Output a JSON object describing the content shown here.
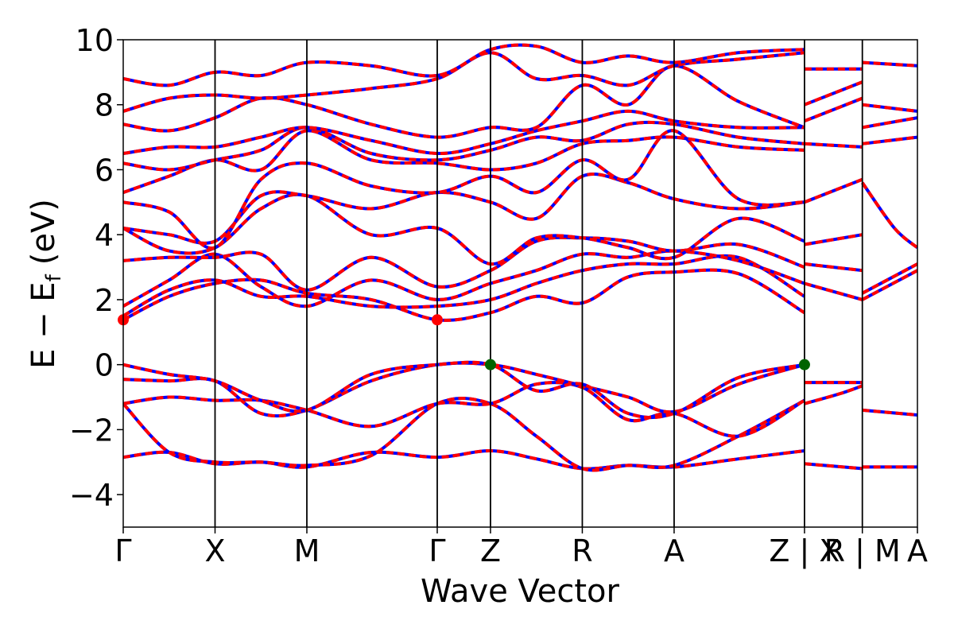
{
  "chart_data": {
    "type": "line",
    "xlabel": "Wave Vector",
    "ylabel": "E − E",
    "ylabel_subscript": "f",
    "ylabel_unit": "(eV)",
    "ylim": [
      -5,
      10
    ],
    "yticks": [
      -4,
      -2,
      0,
      2,
      4,
      6,
      8,
      10
    ],
    "xlim": [
      0,
      8.65
    ],
    "kpoints": [
      {
        "label": "Γ",
        "x": 0.0
      },
      {
        "label": "X",
        "x": 1.0
      },
      {
        "label": "M",
        "x": 2.0
      },
      {
        "label": "Γ",
        "x": 3.42
      },
      {
        "label": "Z",
        "x": 4.0
      },
      {
        "label": "R",
        "x": 5.0
      },
      {
        "label": "A",
        "x": 6.0
      },
      {
        "label": "Z | X",
        "x": 7.42
      },
      {
        "label": "R | M",
        "x": 8.05
      },
      {
        "label": "A",
        "x": 8.65
      }
    ],
    "style": {
      "line_color_primary": "#0000ff",
      "line_color_overlay": "#ff0000",
      "cbm_marker_color": "#ff0000",
      "vbm_marker_color": "#006400",
      "grid": false
    },
    "markers": [
      {
        "type": "CBM",
        "x": 0.0,
        "y": 1.38
      },
      {
        "type": "CBM",
        "x": 3.42,
        "y": 1.38
      },
      {
        "type": "VBM",
        "x": 4.0,
        "y": 0.0
      },
      {
        "type": "VBM",
        "x": 7.42,
        "y": 0.0
      }
    ],
    "segments": [
      {
        "x_range": [
          0.0,
          7.42
        ],
        "bands": [
          {
            "x": [
              0,
              0.5,
              1,
              1.5,
              2,
              2.7,
              3.42,
              4,
              4.5,
              5,
              5.5,
              6,
              6.7,
              7.42
            ],
            "y": [
              -2.85,
              -2.7,
              -3.05,
              -3.0,
              -3.15,
              -2.7,
              -2.85,
              -2.65,
              -2.9,
              -3.2,
              -3.1,
              -3.15,
              -2.9,
              -2.65
            ]
          },
          {
            "x": [
              0,
              0.5,
              1,
              1.5,
              2,
              2.7,
              3.42,
              4,
              4.5,
              5,
              5.5,
              6,
              6.7,
              7.42
            ],
            "y": [
              -1.2,
              -2.7,
              -3.0,
              -3.0,
              -3.1,
              -2.8,
              -1.2,
              -1.2,
              -2.2,
              -3.2,
              -3.1,
              -3.1,
              -2.2,
              -1.1
            ]
          },
          {
            "x": [
              0,
              0.5,
              1,
              1.5,
              2,
              2.7,
              3.42,
              4,
              4.5,
              5,
              5.5,
              6,
              6.7,
              7.42
            ],
            "y": [
              -1.2,
              -1.0,
              -1.1,
              -1.1,
              -1.4,
              -1.9,
              -1.2,
              -1.2,
              -0.6,
              -0.7,
              -1.7,
              -1.5,
              -2.2,
              -1.1
            ]
          },
          {
            "x": [
              0,
              0.5,
              1,
              1.5,
              2,
              2.7,
              3.42,
              4,
              4.5,
              5,
              5.5,
              6,
              6.7,
              7.42
            ],
            "y": [
              -0.45,
              -0.5,
              -0.5,
              -1.5,
              -1.4,
              -0.5,
              0.0,
              0.0,
              -0.3,
              -0.65,
              -1.0,
              -1.45,
              -0.6,
              0.0
            ]
          },
          {
            "x": [
              0,
              0.5,
              1,
              1.5,
              2,
              2.7,
              3.42,
              4,
              4.5,
              5,
              5.5,
              6,
              6.7,
              7.42
            ],
            "y": [
              0.0,
              -0.3,
              -0.5,
              -1.1,
              -1.4,
              -0.3,
              0.0,
              0.0,
              -0.8,
              -0.6,
              -1.5,
              -1.5,
              -0.4,
              0.0
            ]
          },
          {
            "x": [
              0,
              0.5,
              1,
              1.5,
              2,
              2.7,
              3.42,
              4,
              4.5,
              5,
              5.5,
              6,
              6.7,
              7.42
            ],
            "y": [
              1.38,
              2.1,
              2.5,
              2.6,
              2.2,
              2.0,
              1.38,
              1.6,
              2.1,
              1.9,
              2.7,
              2.85,
              2.8,
              1.6
            ]
          },
          {
            "x": [
              0,
              0.5,
              1,
              1.5,
              2,
              2.7,
              3.42,
              4,
              4.5,
              5,
              5.5,
              6,
              6.7,
              7.42
            ],
            "y": [
              1.5,
              2.3,
              2.6,
              2.1,
              2.1,
              1.8,
              1.8,
              2.0,
              2.5,
              2.9,
              3.1,
              3.1,
              3.3,
              2.1
            ]
          },
          {
            "x": [
              0,
              0.5,
              1,
              1.5,
              2,
              2.7,
              3.42,
              4,
              4.5,
              5,
              5.5,
              6,
              6.7,
              7.42
            ],
            "y": [
              1.8,
              2.6,
              3.4,
              2.4,
              1.8,
              2.6,
              2.0,
              2.5,
              2.9,
              3.4,
              3.3,
              3.5,
              3.2,
              2.5
            ]
          },
          {
            "x": [
              0,
              0.5,
              1,
              1.5,
              2,
              2.7,
              3.42,
              4,
              4.5,
              5,
              5.5,
              6,
              6.7,
              7.42
            ],
            "y": [
              3.2,
              3.3,
              3.3,
              3.4,
              2.3,
              3.3,
              2.4,
              2.9,
              3.8,
              3.9,
              3.8,
              3.5,
              3.7,
              3.0
            ]
          },
          {
            "x": [
              0,
              0.5,
              1,
              1.5,
              2,
              2.7,
              3.42,
              4,
              4.5,
              5,
              5.5,
              6,
              6.7,
              7.42
            ],
            "y": [
              4.2,
              3.5,
              3.6,
              4.8,
              5.2,
              4.0,
              4.2,
              3.1,
              3.9,
              3.9,
              3.6,
              3.3,
              4.5,
              3.8
            ]
          },
          {
            "x": [
              0,
              0.5,
              1,
              1.5,
              2,
              2.7,
              3.42,
              4,
              4.5,
              5,
              5.5,
              6,
              6.7,
              7.42
            ],
            "y": [
              4.2,
              4.0,
              3.8,
              5.2,
              5.2,
              4.8,
              5.3,
              5.0,
              4.5,
              5.8,
              5.6,
              5.1,
              4.8,
              5.0
            ]
          },
          {
            "x": [
              0,
              0.5,
              1,
              1.5,
              2,
              2.7,
              3.42,
              4,
              4.5,
              5,
              5.5,
              6,
              6.7,
              7.42
            ],
            "y": [
              5.0,
              4.7,
              3.6,
              5.7,
              6.2,
              5.5,
              5.3,
              5.8,
              5.3,
              6.3,
              5.7,
              7.2,
              5.1,
              5.0
            ]
          },
          {
            "x": [
              0,
              0.5,
              1,
              1.5,
              2,
              2.7,
              3.42,
              4,
              4.5,
              5,
              5.5,
              6,
              6.7,
              7.42
            ],
            "y": [
              5.3,
              5.8,
              6.3,
              6.0,
              7.2,
              6.3,
              6.2,
              6.0,
              6.2,
              6.8,
              6.9,
              7.0,
              6.7,
              6.6
            ]
          },
          {
            "x": [
              0,
              0.5,
              1,
              1.5,
              2,
              2.7,
              3.42,
              4,
              4.5,
              5,
              5.5,
              6,
              6.7,
              7.42
            ],
            "y": [
              6.2,
              6.0,
              6.3,
              6.6,
              7.3,
              6.5,
              6.3,
              6.6,
              7.0,
              6.9,
              7.4,
              7.4,
              7.0,
              6.8
            ]
          },
          {
            "x": [
              0,
              0.5,
              1,
              1.5,
              2,
              2.7,
              3.42,
              4,
              4.5,
              5,
              5.5,
              6,
              6.7,
              7.42
            ],
            "y": [
              6.5,
              6.7,
              6.7,
              7.0,
              7.3,
              6.9,
              6.5,
              6.8,
              7.2,
              7.5,
              7.8,
              7.5,
              7.3,
              7.3
            ]
          },
          {
            "x": [
              0,
              0.5,
              1,
              1.5,
              2,
              2.7,
              3.42,
              4,
              4.5,
              5,
              5.5,
              6,
              6.7,
              7.42
            ],
            "y": [
              7.4,
              7.2,
              7.6,
              8.2,
              8.0,
              7.4,
              7.0,
              7.3,
              7.3,
              8.6,
              8.0,
              9.2,
              8.1,
              7.3
            ]
          },
          {
            "x": [
              0,
              0.5,
              1,
              1.5,
              2,
              2.7,
              3.42,
              4,
              4.5,
              5,
              5.5,
              6,
              6.7,
              7.42
            ],
            "y": [
              7.8,
              8.2,
              8.3,
              8.2,
              8.3,
              8.5,
              8.8,
              9.6,
              8.8,
              8.9,
              8.6,
              9.2,
              9.4,
              9.6
            ]
          },
          {
            "x": [
              0,
              0.5,
              1,
              1.5,
              2,
              2.7,
              3.42,
              4,
              4.5,
              5,
              5.5,
              6,
              6.7,
              7.42
            ],
            "y": [
              8.8,
              8.6,
              9.0,
              8.9,
              9.3,
              9.2,
              8.9,
              9.7,
              9.8,
              9.3,
              9.5,
              9.3,
              9.6,
              9.7
            ]
          }
        ]
      },
      {
        "x_range": [
          7.42,
          8.05
        ],
        "bands": [
          {
            "x": [
              7.42,
              8.05
            ],
            "y": [
              -3.05,
              -3.2
            ]
          },
          {
            "x": [
              7.42,
              8.05
            ],
            "y": [
              -0.55,
              -0.55
            ]
          },
          {
            "x": [
              7.42,
              7.8,
              8.05
            ],
            "y": [
              -1.2,
              -0.9,
              -0.65
            ]
          },
          {
            "x": [
              7.42,
              8.05
            ],
            "y": [
              2.5,
              2.0
            ]
          },
          {
            "x": [
              7.42,
              8.05
            ],
            "y": [
              3.7,
              4.0
            ]
          },
          {
            "x": [
              7.42,
              8.05
            ],
            "y": [
              3.1,
              2.9
            ]
          },
          {
            "x": [
              7.42,
              8.05
            ],
            "y": [
              5.0,
              5.7
            ]
          },
          {
            "x": [
              7.42,
              8.05
            ],
            "y": [
              6.8,
              6.7
            ]
          },
          {
            "x": [
              7.42,
              8.05
            ],
            "y": [
              7.5,
              8.2
            ]
          },
          {
            "x": [
              7.42,
              8.05
            ],
            "y": [
              8.0,
              8.7
            ]
          },
          {
            "x": [
              7.42,
              8.05
            ],
            "y": [
              9.1,
              9.1
            ]
          }
        ]
      },
      {
        "x_range": [
          8.05,
          8.65
        ],
        "bands": [
          {
            "x": [
              8.05,
              8.65
            ],
            "y": [
              -3.15,
              -3.15
            ]
          },
          {
            "x": [
              8.05,
              8.65
            ],
            "y": [
              -1.4,
              -1.55
            ]
          },
          {
            "x": [
              8.05,
              8.65
            ],
            "y": [
              2.0,
              2.9
            ]
          },
          {
            "x": [
              8.05,
              8.65
            ],
            "y": [
              2.2,
              3.1
            ]
          },
          {
            "x": [
              8.05,
              8.4,
              8.65
            ],
            "y": [
              5.6,
              4.2,
              3.6
            ]
          },
          {
            "x": [
              8.05,
              8.65
            ],
            "y": [
              6.8,
              7.0
            ]
          },
          {
            "x": [
              8.05,
              8.65
            ],
            "y": [
              7.3,
              7.6
            ]
          },
          {
            "x": [
              8.05,
              8.65
            ],
            "y": [
              8.0,
              7.8
            ]
          },
          {
            "x": [
              8.05,
              8.65
            ],
            "y": [
              9.3,
              9.2
            ]
          }
        ]
      }
    ]
  }
}
